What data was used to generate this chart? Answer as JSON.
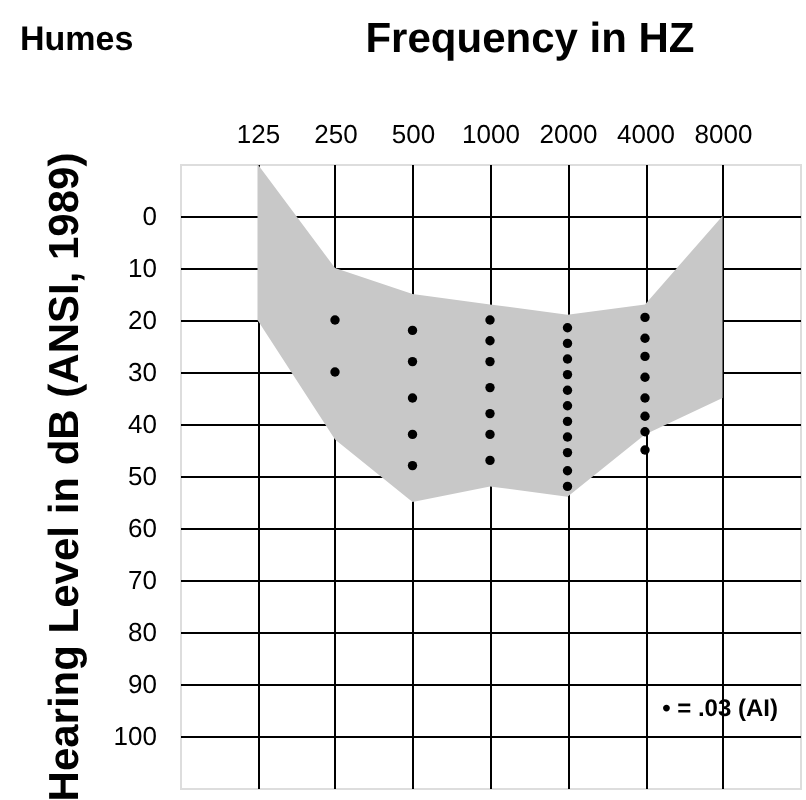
{
  "chart_data": {
    "type": "scatter",
    "title": "Frequency in HZ",
    "ylabel": "Hearing Level in dB (ANSI, 1989)",
    "annotations": [
      "Humes",
      "• = .03 (AI)"
    ],
    "x": [
      125,
      250,
      500,
      1000,
      2000,
      4000,
      8000
    ],
    "log": "x",
    "xlim": [
      62.5,
      16000
    ],
    "xticks": [
      125,
      250,
      500,
      1000,
      2000,
      4000,
      8000
    ],
    "ylim": [
      110,
      -10
    ],
    "yticks": [
      0,
      10,
      20,
      30,
      40,
      50,
      60,
      70,
      80,
      90,
      100
    ],
    "grid": true,
    "series": [
      {
        "type": "area",
        "color": "#c8c8c8",
        "values": [
          null,
          null,
          null,
          null,
          null,
          null,
          null
        ],
        "lower": [
          -10,
          10,
          15,
          17,
          19,
          17,
          0
        ],
        "upper": [
          20,
          43,
          55,
          52,
          54,
          42,
          35
        ]
      },
      {
        "color": "#000000",
        "marker": "circle",
        "x": [
          250,
          250,
          500,
          500,
          500,
          500,
          500,
          1000,
          1000,
          1000,
          1000,
          1000,
          1000,
          1000,
          2000,
          2000,
          2000,
          2000,
          2000,
          2000,
          2000,
          2000,
          2000,
          2000,
          2000,
          4000,
          4000,
          4000,
          4000,
          4000,
          4000,
          4000,
          4000
        ],
        "values": [
          20,
          30,
          22,
          28,
          35,
          42,
          48,
          20,
          24,
          28,
          33,
          38,
          42,
          47,
          21.5,
          24.5,
          27.5,
          30.5,
          33.5,
          36.5,
          39.5,
          42.5,
          45.5,
          49,
          52,
          19.5,
          23.5,
          27,
          31,
          35,
          38.5,
          41.5,
          45
        ]
      }
    ]
  }
}
